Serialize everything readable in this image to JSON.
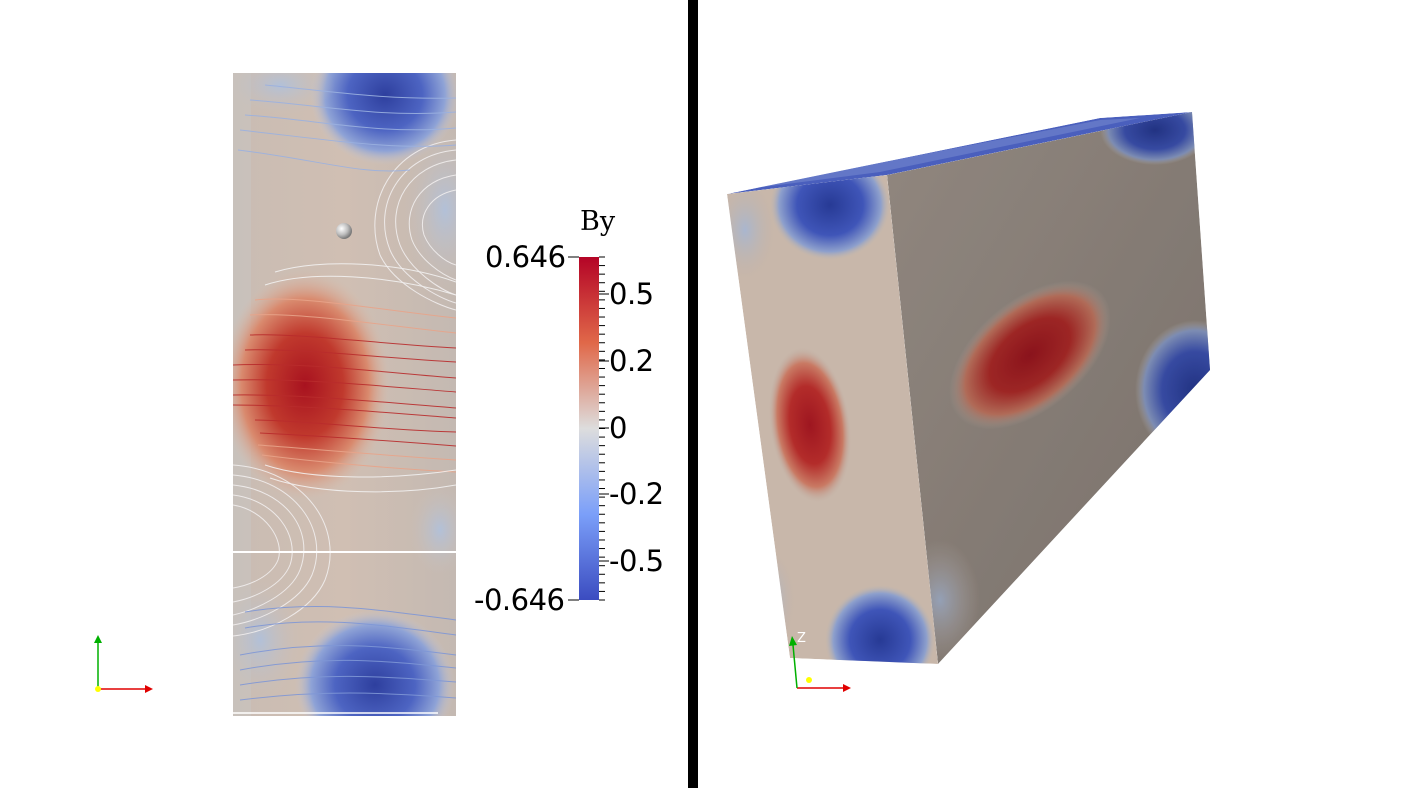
{
  "colorbar": {
    "title": "By",
    "max_label": "0.646",
    "min_label": "-0.646",
    "range": [
      -0.646,
      0.646
    ],
    "tick_labels": [
      "0.5",
      "0.2",
      "0",
      "-0.2",
      "-0.5"
    ],
    "colormap": "Cool to Warm",
    "colors": {
      "low": "#3b4cc0",
      "mid": "#dddddd",
      "high": "#b40426"
    }
  },
  "right_view": {
    "axis_label": "Z"
  },
  "colors": {
    "divider": "#000000",
    "x_axis": "#e00000",
    "y_axis": "#00b000",
    "origin": "#ffff00"
  },
  "icons": {
    "left_axes": "orientation-axes-icon",
    "right_axes": "orientation-axes-icon"
  }
}
